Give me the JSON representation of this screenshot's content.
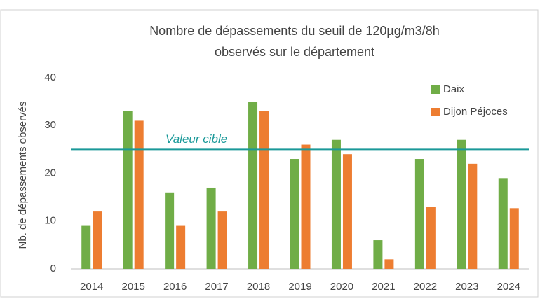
{
  "chart_data": {
    "type": "bar",
    "title": [
      "Nombre de dépassements du seuil de 120µg/m3/8h",
      "observés sur le département"
    ],
    "y_label": "Nb. de dépassements observés",
    "categories": [
      "2014",
      "2015",
      "2016",
      "2017",
      "2018",
      "2019",
      "2020",
      "2021",
      "2022",
      "2023",
      "2024"
    ],
    "series": [
      {
        "name": "Daix",
        "color": "#70ad47",
        "values": [
          9,
          33,
          16,
          17,
          35,
          23,
          27,
          6,
          23,
          27,
          19
        ]
      },
      {
        "name": "Dijon Péjoces",
        "color": "#ed7d31",
        "values": [
          12,
          31,
          9,
          12,
          33,
          26,
          24,
          2,
          13,
          22,
          12.7
        ]
      }
    ],
    "ylim": [
      0,
      40
    ],
    "yticks": [
      0,
      10,
      20,
      30,
      40
    ],
    "grid": false,
    "legend": "top-right",
    "reference_line": {
      "value": 25,
      "label": "Valeur cible",
      "color": "#1a9999"
    }
  }
}
